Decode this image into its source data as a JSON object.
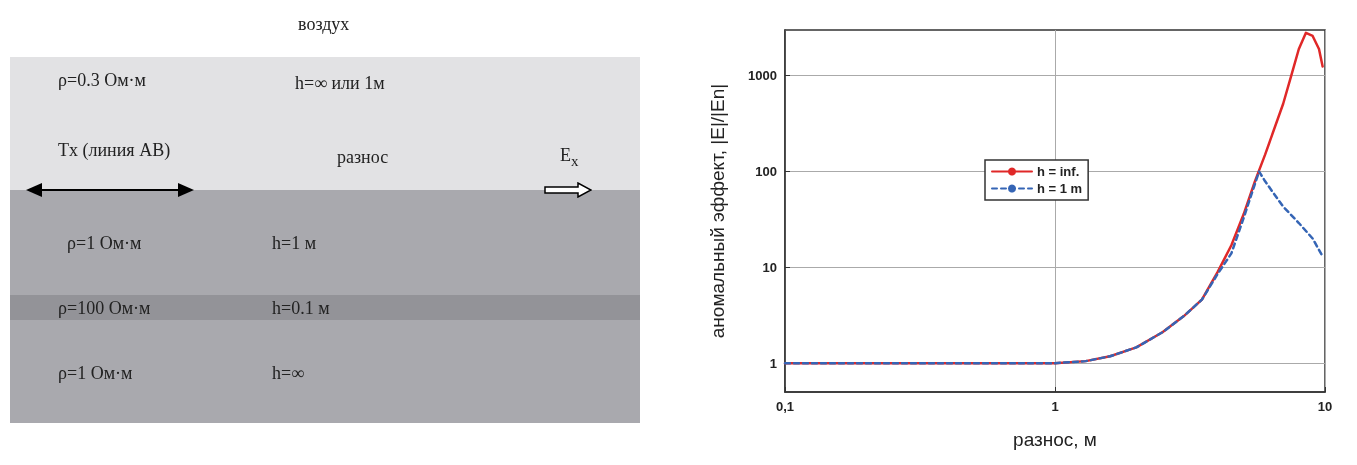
{
  "chart_data": [
    {
      "type": "other",
      "annotations": [
        "воздух",
        "ρ=0.3 Ом·м",
        "h=∞  или  1м",
        "Tx  (линия AB)",
        "разнос",
        "E$_{x}$",
        "ρ=1 Ом·м",
        "h=1 м",
        "ρ=100 Ом·м",
        "h=0.1 м",
        "ρ=1 Ом·м",
        "h=∞"
      ]
    },
    {
      "type": "line",
      "xlabel": "разнос, м",
      "ylabel": "аномальный эффект, |E|/|En|",
      "log": "xy",
      "grid": true,
      "legend": "center",
      "marker": "none",
      "xlim": [
        0.1,
        10
      ],
      "xticks": [
        {
          "value": 0.1,
          "label": "0,1"
        },
        1,
        10
      ],
      "ylim": [
        0.5,
        3000
      ],
      "yticks": [
        1,
        10,
        100,
        1000
      ],
      "series": [
        {
          "name": "h = inf.",
          "color": "#e02828",
          "line_style": "solid",
          "x": [
            0.1,
            0.5,
            1,
            1.3,
            1.6,
            2,
            2.5,
            3,
            3.5,
            4,
            4.5,
            5,
            5.5,
            6,
            7,
            7.5,
            8,
            8.5,
            9,
            9.5,
            9.8
          ],
          "values": [
            1,
            1,
            1,
            1.05,
            1.18,
            1.46,
            2.1,
            3.1,
            4.6,
            8.9,
            17,
            36,
            79,
            150,
            510,
            1000,
            1900,
            2800,
            2600,
            1900,
            1250
          ]
        },
        {
          "name": "h = 1 m",
          "color": "#3565b5",
          "line_style": "dashed",
          "x": [
            0.1,
            0.5,
            1,
            1.3,
            1.6,
            2,
            2.5,
            3,
            3.5,
            4,
            4.5,
            5,
            5.5,
            5.7,
            6,
            7,
            8,
            9,
            9.8
          ],
          "values": [
            1,
            1,
            1,
            1.05,
            1.18,
            1.46,
            2.1,
            3.1,
            4.6,
            8.5,
            14,
            33,
            74,
            100,
            79,
            43,
            29,
            20,
            13
          ]
        }
      ]
    }
  ]
}
